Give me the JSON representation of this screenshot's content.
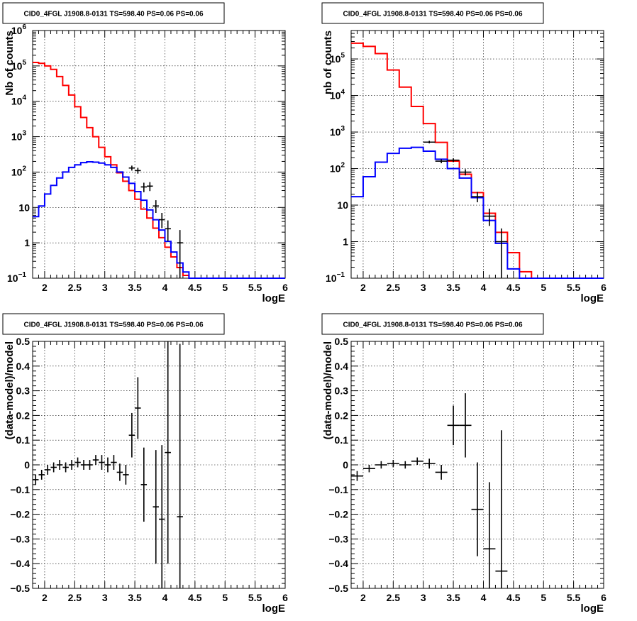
{
  "chart_data": [
    {
      "type": "line",
      "title": "CID0_4FGL J1908.8-0131 TS=598.40 PS=0.06 PS=0.06",
      "xlabel": "logE",
      "ylabel": "Nb of counts",
      "xlim": [
        1.8,
        6.0
      ],
      "ylim": [
        0.1,
        1000000
      ],
      "yscale": "log",
      "grid": true,
      "x_ticks": [
        2,
        2.5,
        3,
        3.5,
        4,
        4.5,
        5,
        5.5,
        6
      ],
      "x_tick_labels": [
        "2",
        "2.5",
        "3",
        "3.5",
        "4",
        "4.5",
        "5",
        "5.5",
        "6"
      ],
      "y_ticks": [
        0.1,
        1,
        10,
        100,
        1000,
        10000,
        100000,
        1000000
      ],
      "y_tick_labels": [
        {
          "base": "10",
          "exp": "−1"
        },
        {
          "base": "1",
          "exp": ""
        },
        {
          "base": "10",
          "exp": ""
        },
        {
          "base": "10",
          "exp": "2"
        },
        {
          "base": "10",
          "exp": "3"
        },
        {
          "base": "10",
          "exp": "4"
        },
        {
          "base": "10",
          "exp": "5"
        },
        {
          "base": "10",
          "exp": "6"
        }
      ],
      "bin_edges": [
        1.8,
        1.9,
        2.0,
        2.1,
        2.2,
        2.3,
        2.4,
        2.5,
        2.6,
        2.7,
        2.8,
        2.9,
        3.0,
        3.1,
        3.2,
        3.3,
        3.4,
        3.5,
        3.6,
        3.7,
        3.8,
        3.9,
        4.0,
        4.1,
        4.2,
        4.3,
        4.4,
        4.5,
        4.6,
        4.7,
        4.8,
        4.9,
        5.0,
        5.1,
        5.2,
        5.3,
        5.4,
        5.5,
        5.6,
        5.7,
        5.8,
        5.9,
        6.0
      ],
      "series": [
        {
          "color": "#ff0000",
          "values": [
            125000,
            118000,
            100000,
            80000,
            50000,
            28000,
            15000,
            7000,
            3500,
            1800,
            1000,
            500,
            270,
            160,
            95,
            55,
            30,
            17,
            9,
            5,
            2.6,
            1.4,
            0.75,
            0.4,
            0.2,
            0.12,
            0.1,
            0.1,
            0.1,
            0.1,
            0.1,
            0.1,
            0.1,
            0.1,
            0.1,
            0.1,
            0.1,
            0.1,
            0.1,
            0.1,
            0.1,
            0.1
          ]
        },
        {
          "color": "#0000ff",
          "values": [
            5.5,
            11,
            24,
            42,
            68,
            100,
            135,
            160,
            185,
            195,
            190,
            180,
            160,
            135,
            100,
            72,
            48,
            28,
            16,
            8.5,
            4.5,
            2.3,
            1.1,
            0.55,
            0.27,
            0.15,
            0.1,
            0.1,
            0.1,
            0.1,
            0.1,
            0.1,
            0.1,
            0.1,
            0.1,
            0.1,
            0.1,
            0.1,
            0.1,
            0.1,
            0.1,
            0.1
          ]
        },
        {
          "color": "#000000",
          "points": [
            {
              "x": 3.45,
              "y": 130,
              "lo": 110,
              "hi": 152
            },
            {
              "x": 3.55,
              "y": 110,
              "lo": 90,
              "hi": 132
            },
            {
              "x": 3.65,
              "y": 38,
              "lo": 27,
              "hi": 50
            },
            {
              "x": 3.75,
              "y": 40,
              "lo": 29,
              "hi": 52
            },
            {
              "x": 3.85,
              "y": 11,
              "lo": 7,
              "hi": 16
            },
            {
              "x": 3.95,
              "y": 4.5,
              "lo": 2.6,
              "hi": 7
            },
            {
              "x": 4.05,
              "y": 2.5,
              "lo": 1.1,
              "hi": 4.3
            },
            {
              "x": 4.25,
              "y": 1,
              "lo": 0.1,
              "hi": 2.3
            }
          ]
        }
      ]
    },
    {
      "type": "line",
      "title": "CID0_4FGL J1908.8-0131 TS=598.40 PS=0.06 PS=0.06",
      "xlabel": "logE",
      "ylabel": "nb of counts",
      "xlim": [
        1.8,
        6.0
      ],
      "ylim": [
        0.1,
        600000
      ],
      "yscale": "log",
      "grid": true,
      "x_ticks": [
        2,
        2.5,
        3,
        3.5,
        4,
        4.5,
        5,
        5.5,
        6
      ],
      "x_tick_labels": [
        "2",
        "2.5",
        "3",
        "3.5",
        "4",
        "4.5",
        "5",
        "5.5",
        "6"
      ],
      "y_ticks": [
        0.1,
        1,
        10,
        100,
        1000,
        10000,
        100000
      ],
      "y_tick_labels": [
        {
          "base": "10",
          "exp": "−1"
        },
        {
          "base": "1",
          "exp": ""
        },
        {
          "base": "10",
          "exp": ""
        },
        {
          "base": "10",
          "exp": "2"
        },
        {
          "base": "10",
          "exp": "3"
        },
        {
          "base": "10",
          "exp": "4"
        },
        {
          "base": "10",
          "exp": "5"
        }
      ],
      "bin_edges": [
        1.8,
        2.0,
        2.2,
        2.4,
        2.6,
        2.8,
        3.0,
        3.2,
        3.4,
        3.6,
        3.8,
        4.0,
        4.2,
        4.4,
        4.6,
        4.8,
        5.0,
        5.2,
        5.4,
        5.6,
        5.8,
        6.0
      ],
      "series": [
        {
          "color": "#ff0000",
          "values": [
            270000,
            220000,
            140000,
            50000,
            17000,
            5000,
            1700,
            520,
            160,
            70,
            22,
            6,
            1.8,
            0.5,
            0.15,
            0.1,
            0.1,
            0.1,
            0.1,
            0.1,
            0.1
          ]
        },
        {
          "color": "#0000ff",
          "values": [
            17,
            60,
            150,
            260,
            360,
            380,
            300,
            180,
            100,
            55,
            16,
            3.8,
            0.9,
            0.18,
            0.1,
            0.1,
            0.1,
            0.1,
            0.1,
            0.1,
            0.1
          ]
        },
        {
          "color": "#000000",
          "points": [
            {
              "x": 3.1,
              "y": 530,
              "lo": 490,
              "hi": 575
            },
            {
              "x": 3.3,
              "y": 160,
              "lo": 140,
              "hi": 180
            },
            {
              "x": 3.5,
              "y": 170,
              "lo": 150,
              "hi": 192
            },
            {
              "x": 3.7,
              "y": 80,
              "lo": 65,
              "hi": 96
            },
            {
              "x": 3.9,
              "y": 17,
              "lo": 12,
              "hi": 23
            },
            {
              "x": 4.1,
              "y": 5,
              "lo": 2.7,
              "hi": 8
            },
            {
              "x": 4.3,
              "y": 1,
              "lo": 0.1,
              "hi": 2.3
            }
          ]
        }
      ]
    },
    {
      "type": "scatter",
      "title": "CID0_4FGL J1908.8-0131 TS=598.40 PS=0.06 PS=0.06",
      "xlabel": "logE",
      "ylabel": "(data-model)/model",
      "xlim": [
        1.8,
        6.0
      ],
      "ylim": [
        -0.5,
        0.5
      ],
      "grid": true,
      "x_ticks": [
        2,
        2.5,
        3,
        3.5,
        4,
        4.5,
        5,
        5.5,
        6
      ],
      "x_tick_labels": [
        "2",
        "2.5",
        "3",
        "3.5",
        "4",
        "4.5",
        "5",
        "5.5",
        "6"
      ],
      "y_ticks": [
        -0.5,
        -0.4,
        -0.3,
        -0.2,
        -0.1,
        0,
        0.1,
        0.2,
        0.3,
        0.4,
        0.5
      ],
      "y_tick_labels": [
        "−0.5",
        "−0.4",
        "−0.3",
        "−0.2",
        "−0.1",
        "0",
        "0.1",
        "0.2",
        "0.3",
        "0.4",
        "0.5"
      ],
      "bin_width": 0.1,
      "series": [
        {
          "color": "#000000",
          "points": [
            {
              "x": 1.85,
              "y": -0.06,
              "err": 0.02
            },
            {
              "x": 1.95,
              "y": -0.04,
              "err": 0.02
            },
            {
              "x": 2.05,
              "y": -0.02,
              "err": 0.02
            },
            {
              "x": 2.15,
              "y": -0.01,
              "err": 0.02
            },
            {
              "x": 2.25,
              "y": 0.0,
              "err": 0.02
            },
            {
              "x": 2.35,
              "y": -0.01,
              "err": 0.02
            },
            {
              "x": 2.45,
              "y": 0.0,
              "err": 0.02
            },
            {
              "x": 2.55,
              "y": 0.01,
              "err": 0.02
            },
            {
              "x": 2.65,
              "y": 0.0,
              "err": 0.02
            },
            {
              "x": 2.75,
              "y": 0.0,
              "err": 0.02
            },
            {
              "x": 2.85,
              "y": 0.02,
              "err": 0.02
            },
            {
              "x": 2.95,
              "y": 0.01,
              "err": 0.03
            },
            {
              "x": 3.05,
              "y": 0.0,
              "err": 0.03
            },
            {
              "x": 3.15,
              "y": 0.01,
              "err": 0.03
            },
            {
              "x": 3.25,
              "y": -0.03,
              "err": 0.035
            },
            {
              "x": 3.35,
              "y": -0.04,
              "err": 0.04
            },
            {
              "x": 3.45,
              "y": 0.12,
              "err": 0.09
            },
            {
              "x": 3.55,
              "y": 0.23,
              "err": 0.125
            },
            {
              "x": 3.65,
              "y": -0.08,
              "err": 0.15
            },
            {
              "x": 3.85,
              "y": -0.17,
              "err": 0.23
            },
            {
              "x": 3.95,
              "y": -0.22,
              "err": 0.3
            },
            {
              "x": 4.05,
              "y": 0.05,
              "err": 0.45
            },
            {
              "x": 4.25,
              "y": -0.21,
              "err": 0.7
            }
          ]
        }
      ]
    },
    {
      "type": "scatter",
      "title": "CID0_4FGL J1908.8-0131 TS=598.40 PS=0.06 PS=0.06",
      "xlabel": "logE",
      "ylabel": "(data-model)/model",
      "xlim": [
        1.8,
        6.0
      ],
      "ylim": [
        -0.5,
        0.5
      ],
      "grid": true,
      "x_ticks": [
        2,
        2.5,
        3,
        3.5,
        4,
        4.5,
        5,
        5.5,
        6
      ],
      "x_tick_labels": [
        "2",
        "2.5",
        "3",
        "3.5",
        "4",
        "4.5",
        "5",
        "5.5",
        "6"
      ],
      "y_ticks": [
        -0.5,
        -0.4,
        -0.3,
        -0.2,
        -0.1,
        0,
        0.1,
        0.2,
        0.3,
        0.4,
        0.5
      ],
      "y_tick_labels": [
        "−0.5",
        "−0.4",
        "−0.3",
        "−0.2",
        "−0.1",
        "0",
        "0.1",
        "0.2",
        "0.3",
        "0.4",
        "0.5"
      ],
      "bin_width": 0.2,
      "series": [
        {
          "color": "#000000",
          "points": [
            {
              "x": 1.9,
              "y": -0.045,
              "err": 0.02
            },
            {
              "x": 2.1,
              "y": -0.015,
              "err": 0.015
            },
            {
              "x": 2.3,
              "y": 0.0,
              "err": 0.015
            },
            {
              "x": 2.5,
              "y": 0.005,
              "err": 0.015
            },
            {
              "x": 2.7,
              "y": 0.0,
              "err": 0.015
            },
            {
              "x": 2.9,
              "y": 0.015,
              "err": 0.015
            },
            {
              "x": 3.1,
              "y": 0.005,
              "err": 0.02
            },
            {
              "x": 3.3,
              "y": -0.03,
              "err": 0.03
            },
            {
              "x": 3.5,
              "y": 0.16,
              "err": 0.08
            },
            {
              "x": 3.7,
              "y": 0.16,
              "err": 0.13
            },
            {
              "x": 3.9,
              "y": -0.18,
              "err": 0.19
            },
            {
              "x": 4.1,
              "y": -0.34,
              "err": 0.27
            },
            {
              "x": 4.3,
              "y": -0.43,
              "err": 0.57
            }
          ]
        }
      ]
    }
  ]
}
